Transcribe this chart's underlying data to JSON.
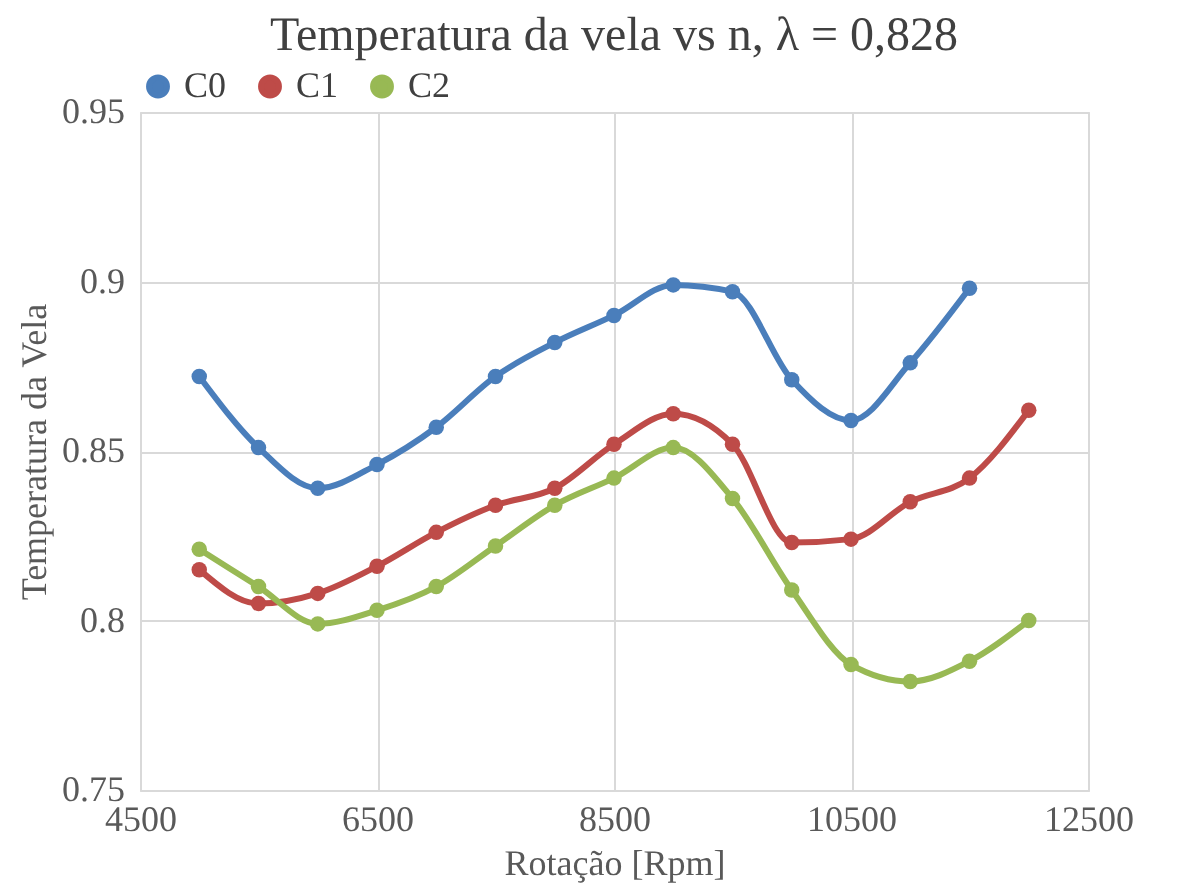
{
  "chart_data": {
    "type": "line",
    "title": "Temperatura da vela vs n, λ = 0,828",
    "xlabel": "Rotação [Rpm]",
    "ylabel": "Temperatura da Vela",
    "x": [
      5000,
      5500,
      6000,
      6500,
      7000,
      7500,
      8000,
      8500,
      9000,
      9500,
      10000,
      10500,
      11000,
      11500,
      12000
    ],
    "series": [
      {
        "name": "C0",
        "color": "#4a7ebb",
        "values": [
          0.872,
          0.851,
          0.839,
          0.846,
          0.857,
          0.872,
          0.882,
          0.89,
          0.899,
          0.897,
          0.871,
          0.859,
          0.876,
          0.898,
          null
        ]
      },
      {
        "name": "C1",
        "color": "#be4b48",
        "values": [
          0.815,
          0.805,
          0.808,
          0.816,
          0.826,
          0.834,
          0.839,
          0.852,
          0.861,
          0.852,
          0.823,
          0.824,
          0.835,
          0.842,
          0.862
        ]
      },
      {
        "name": "C2",
        "color": "#98b954",
        "values": [
          0.821,
          0.81,
          0.799,
          0.803,
          0.81,
          0.822,
          0.834,
          0.842,
          0.851,
          0.836,
          0.809,
          0.787,
          0.782,
          0.788,
          0.8
        ]
      }
    ],
    "xlim": [
      4500,
      12500
    ],
    "xticks": [
      4500,
      6500,
      8500,
      10500,
      12500
    ],
    "ylim": [
      0.75,
      0.95
    ],
    "yticks": [
      0.75,
      0.8,
      0.85,
      0.9,
      0.95
    ],
    "grid": true,
    "legend": "top",
    "marker": "circle",
    "line_style": "solid"
  }
}
